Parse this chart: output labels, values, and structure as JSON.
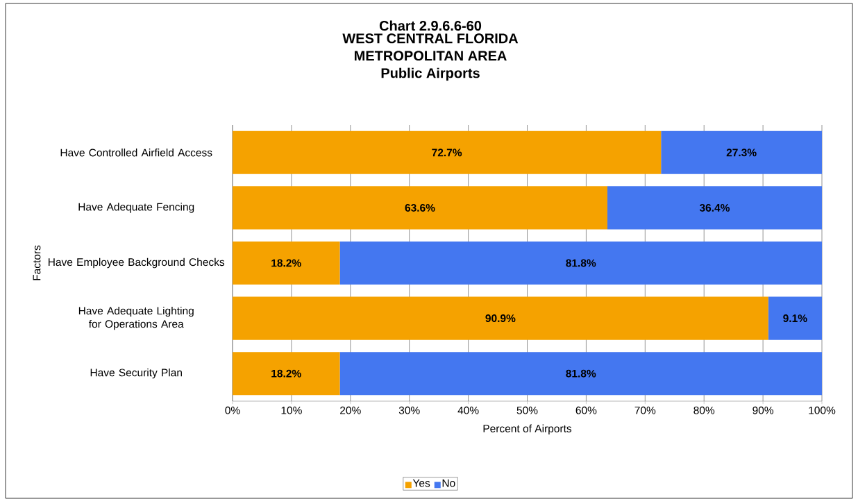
{
  "chart_data": {
    "type": "bar",
    "orientation": "horizontal",
    "stacked": true,
    "title": "Chart 2.9.6.6-60",
    "subtitle": "WEST CENTRAL FLORIDA METROPOLITAN AREA Public Airports",
    "xlabel": "Percent of Airports",
    "ylabel": "Factors",
    "categories": [
      "Have Controlled Airfield Access",
      "Have Adequate Fencing",
      "Have Employee Background Checks",
      "Have Adequate Lighting for Operations Area",
      "Have Security Plan"
    ],
    "series": [
      {
        "name": "Yes",
        "color": "#f5a200",
        "values": [
          72.7,
          63.6,
          18.2,
          90.9,
          18.2
        ],
        "value_labels": [
          "72.7%",
          "63.6%",
          "18.2%",
          "90.9%",
          "18.2%"
        ]
      },
      {
        "name": "No",
        "color": "#4477f0",
        "values": [
          27.3,
          36.4,
          81.8,
          9.1,
          81.8
        ],
        "value_labels": [
          "27.3%",
          "36.4%",
          "81.8%",
          "9.1%",
          "81.8%"
        ]
      }
    ],
    "xlim": [
      0,
      100
    ],
    "xticks": [
      {
        "value": 0,
        "label": "0%"
      },
      {
        "value": 10,
        "label": "10%"
      },
      {
        "value": 20,
        "label": "20%"
      },
      {
        "value": 30,
        "label": "30%"
      },
      {
        "value": 40,
        "label": "40%"
      },
      {
        "value": 50,
        "label": "50%"
      },
      {
        "value": 60,
        "label": "60%"
      },
      {
        "value": 70,
        "label": "70%"
      },
      {
        "value": 80,
        "label": "80%"
      },
      {
        "value": 90,
        "label": "90%"
      },
      {
        "value": 100,
        "label": "100%"
      }
    ],
    "grid": "x",
    "legend": "bottom"
  }
}
